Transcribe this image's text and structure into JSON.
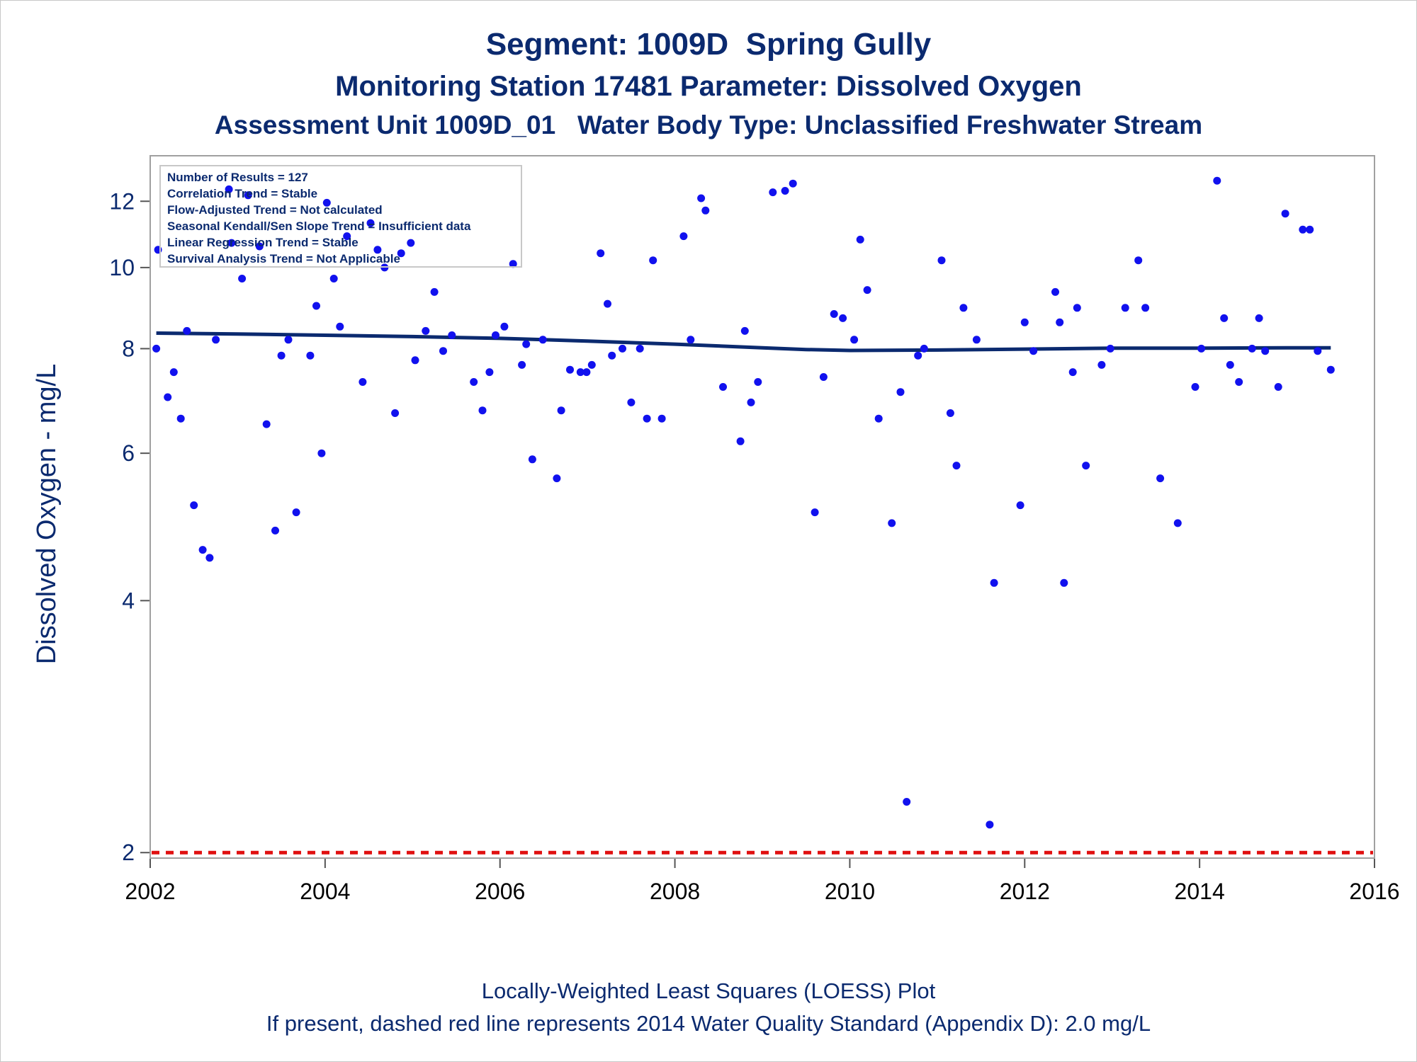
{
  "titles": {
    "line1": "Segment: 1009D  Spring Gully",
    "line2": "Monitoring Station 17481 Parameter: Dissolved Oxygen",
    "line3": "Assessment Unit 1009D_01   Water Body Type: Unclassified Freshwater Stream"
  },
  "footnotes": {
    "line1": "Locally-Weighted Least Squares (LOESS) Plot",
    "line2": "If present, dashed red line represents 2014 Water Quality Standard (Appendix D): 2.0 mg/L"
  },
  "colors": {
    "title": "#0b2a6f",
    "points": "#1111ee",
    "loess": "#0b2a6f",
    "standard_line": "#e01010",
    "plot_border": "#a0a0a0"
  },
  "chart_data": {
    "type": "scatter",
    "ylabel": "Dissolved Oxygen - mg/L",
    "xlabel": "",
    "y_scale": "log",
    "x_ticks": [
      "2002",
      "2004",
      "2006",
      "2008",
      "2010",
      "2012",
      "2014",
      "2016"
    ],
    "y_ticks": [
      "2",
      "4",
      "6",
      "8",
      "10",
      "12"
    ],
    "xlim": [
      2002,
      2016
    ],
    "ylim": [
      1.97,
      13.6
    ],
    "grid": false,
    "legend": "none",
    "inset": [
      "Number of Results = 127",
      "Correlation Trend = Stable",
      "Flow-Adjusted Trend = Not calculated",
      "Seasonal Kendall/Sen Slope Trend = Insufficient data",
      "Linear Regression Trend = Stable",
      "Survival Analysis Trend = Not Applicable"
    ],
    "standard": {
      "value": 2.0,
      "unit": "mg/L",
      "style": "dashed red"
    },
    "series": [
      {
        "kind": "scatter",
        "points": [
          [
            2002.07,
            8.0
          ],
          [
            2002.09,
            10.5
          ],
          [
            2002.2,
            7.0
          ],
          [
            2002.27,
            7.5
          ],
          [
            2002.35,
            6.6
          ],
          [
            2002.42,
            8.4
          ],
          [
            2002.5,
            5.2
          ],
          [
            2002.6,
            4.6
          ],
          [
            2002.68,
            4.5
          ],
          [
            2002.75,
            8.2
          ],
          [
            2002.9,
            12.4
          ],
          [
            2002.93,
            10.7
          ],
          [
            2003.05,
            9.7
          ],
          [
            2003.12,
            12.2
          ],
          [
            2003.25,
            10.6
          ],
          [
            2003.33,
            6.5
          ],
          [
            2003.43,
            4.85
          ],
          [
            2003.5,
            7.85
          ],
          [
            2003.58,
            8.2
          ],
          [
            2003.67,
            5.1
          ],
          [
            2003.83,
            7.85
          ],
          [
            2003.9,
            9.0
          ],
          [
            2003.96,
            6.0
          ],
          [
            2004.02,
            11.95
          ],
          [
            2004.1,
            9.7
          ],
          [
            2004.17,
            8.5
          ],
          [
            2004.25,
            10.9
          ],
          [
            2004.43,
            7.3
          ],
          [
            2004.52,
            11.3
          ],
          [
            2004.6,
            10.5
          ],
          [
            2004.68,
            10.0
          ],
          [
            2004.8,
            6.7
          ],
          [
            2004.87,
            10.4
          ],
          [
            2004.98,
            10.7
          ],
          [
            2005.03,
            7.75
          ],
          [
            2005.15,
            8.4
          ],
          [
            2005.25,
            9.35
          ],
          [
            2005.35,
            7.95
          ],
          [
            2005.45,
            8.3
          ],
          [
            2005.7,
            7.3
          ],
          [
            2005.8,
            6.75
          ],
          [
            2005.88,
            7.5
          ],
          [
            2005.95,
            8.3
          ],
          [
            2006.05,
            8.5
          ],
          [
            2006.15,
            10.1
          ],
          [
            2006.25,
            7.65
          ],
          [
            2006.3,
            8.1
          ],
          [
            2006.37,
            5.9
          ],
          [
            2006.49,
            8.2
          ],
          [
            2006.65,
            5.6
          ],
          [
            2006.7,
            6.75
          ],
          [
            2006.8,
            7.55
          ],
          [
            2006.92,
            7.5
          ],
          [
            2006.99,
            7.5
          ],
          [
            2007.05,
            7.65
          ],
          [
            2007.15,
            10.4
          ],
          [
            2007.23,
            9.05
          ],
          [
            2007.28,
            7.85
          ],
          [
            2007.4,
            8.0
          ],
          [
            2007.5,
            6.9
          ],
          [
            2007.6,
            8.0
          ],
          [
            2007.68,
            6.6
          ],
          [
            2007.75,
            10.2
          ],
          [
            2007.85,
            6.6
          ],
          [
            2008.1,
            10.9
          ],
          [
            2008.18,
            8.2
          ],
          [
            2008.3,
            12.1
          ],
          [
            2008.35,
            11.7
          ],
          [
            2008.55,
            7.2
          ],
          [
            2008.75,
            6.2
          ],
          [
            2008.8,
            8.4
          ],
          [
            2008.87,
            6.9
          ],
          [
            2008.95,
            7.3
          ],
          [
            2009.12,
            12.3
          ],
          [
            2009.26,
            12.35
          ],
          [
            2009.35,
            12.6
          ],
          [
            2009.6,
            5.1
          ],
          [
            2009.7,
            7.4
          ],
          [
            2009.82,
            8.8
          ],
          [
            2009.92,
            8.7
          ],
          [
            2010.05,
            8.2
          ],
          [
            2010.12,
            10.8
          ],
          [
            2010.2,
            9.4
          ],
          [
            2010.33,
            6.6
          ],
          [
            2010.48,
            4.95
          ],
          [
            2010.58,
            7.1
          ],
          [
            2010.65,
            2.3
          ],
          [
            2010.78,
            7.85
          ],
          [
            2010.85,
            8.0
          ],
          [
            2011.05,
            10.2
          ],
          [
            2011.15,
            6.7
          ],
          [
            2011.22,
            5.8
          ],
          [
            2011.3,
            8.95
          ],
          [
            2011.45,
            8.2
          ],
          [
            2011.6,
            2.16
          ],
          [
            2011.65,
            4.2
          ],
          [
            2011.95,
            5.2
          ],
          [
            2012.0,
            8.6
          ],
          [
            2012.1,
            7.95
          ],
          [
            2012.35,
            9.35
          ],
          [
            2012.4,
            8.6
          ],
          [
            2012.45,
            4.2
          ],
          [
            2012.55,
            7.5
          ],
          [
            2012.6,
            8.95
          ],
          [
            2012.7,
            5.8
          ],
          [
            2012.88,
            7.65
          ],
          [
            2012.98,
            8.0
          ],
          [
            2013.15,
            8.95
          ],
          [
            2013.3,
            10.2
          ],
          [
            2013.38,
            8.95
          ],
          [
            2013.55,
            5.6
          ],
          [
            2013.75,
            4.95
          ],
          [
            2013.95,
            7.2
          ],
          [
            2014.02,
            8.0
          ],
          [
            2014.2,
            12.7
          ],
          [
            2014.28,
            8.7
          ],
          [
            2014.35,
            7.65
          ],
          [
            2014.45,
            7.3
          ],
          [
            2014.6,
            8.0
          ],
          [
            2014.68,
            8.7
          ],
          [
            2014.75,
            7.95
          ],
          [
            2014.9,
            7.2
          ],
          [
            2014.98,
            11.6
          ],
          [
            2015.18,
            11.1
          ],
          [
            2015.26,
            11.1
          ],
          [
            2015.35,
            7.95
          ],
          [
            2015.5,
            7.55
          ]
        ]
      },
      {
        "kind": "line",
        "points": [
          [
            2002.07,
            8.35
          ],
          [
            2003.0,
            8.33
          ],
          [
            2004.0,
            8.3
          ],
          [
            2005.0,
            8.27
          ],
          [
            2006.0,
            8.23
          ],
          [
            2007.0,
            8.17
          ],
          [
            2008.0,
            8.1
          ],
          [
            2009.0,
            8.02
          ],
          [
            2009.5,
            7.98
          ],
          [
            2010.0,
            7.96
          ],
          [
            2011.0,
            7.97
          ],
          [
            2012.0,
            7.99
          ],
          [
            2013.0,
            8.01
          ],
          [
            2014.0,
            8.01
          ],
          [
            2015.0,
            8.02
          ],
          [
            2015.5,
            8.02
          ]
        ]
      }
    ]
  }
}
